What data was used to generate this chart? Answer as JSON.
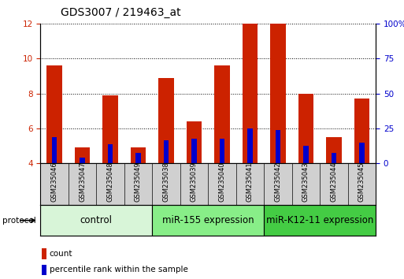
{
  "title": "GDS3007 / 219463_at",
  "samples": [
    "GSM235046",
    "GSM235047",
    "GSM235048",
    "GSM235049",
    "GSM235038",
    "GSM235039",
    "GSM235040",
    "GSM235041",
    "GSM235042",
    "GSM235043",
    "GSM235044",
    "GSM235045"
  ],
  "count_values": [
    9.6,
    4.9,
    7.9,
    4.9,
    8.9,
    6.4,
    9.6,
    12.0,
    12.0,
    8.0,
    5.5,
    7.7
  ],
  "percentile_values": [
    5.5,
    4.3,
    5.1,
    4.6,
    5.3,
    5.4,
    5.4,
    6.0,
    5.9,
    5.0,
    4.6,
    5.2
  ],
  "groups": [
    {
      "label": "control",
      "start": 0,
      "end": 4,
      "color_light": "#d8f5d8",
      "color_dark": "#33cc33"
    },
    {
      "label": "miR-155 expression",
      "start": 4,
      "end": 8,
      "color_light": "#88ee88",
      "color_dark": "#33cc33"
    },
    {
      "label": "miR-K12-11 expression",
      "start": 8,
      "end": 12,
      "color_light": "#44cc44",
      "color_dark": "#22aa22"
    }
  ],
  "ylim": [
    4,
    12
  ],
  "yticks_left": [
    4,
    6,
    8,
    10,
    12
  ],
  "ytick_labels_right": [
    "0",
    "25",
    "50",
    "75",
    "100%"
  ],
  "right_ytick_positions": [
    4,
    6,
    8,
    10,
    12
  ],
  "bar_color": "#cc2200",
  "percentile_color": "#0000cc",
  "bar_width": 0.55,
  "perc_bar_width": 0.18,
  "background_color": "#ffffff",
  "sample_box_color": "#d0d0d0",
  "title_fontsize": 10,
  "tick_fontsize": 7.5,
  "sample_fontsize": 6.0,
  "group_fontsize": 8.5,
  "legend_fontsize": 7.5
}
